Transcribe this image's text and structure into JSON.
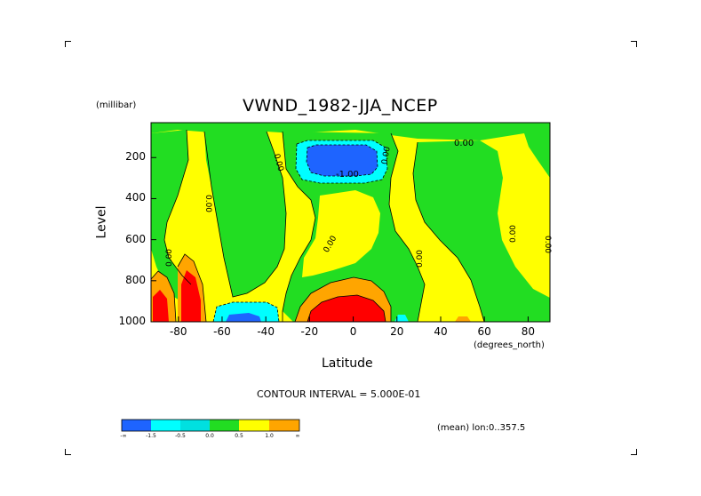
{
  "header": {
    "title": "VWND_1982-JJA_NCEP",
    "units_label": "(millibar)"
  },
  "footer": {
    "contour_interval": "CONTOUR INTERVAL = 5.000E-01",
    "mean_note": "(mean) lon:0..357.5"
  },
  "chart_data": {
    "type": "heatmap",
    "title": "VWND_1982-JJA_NCEP",
    "xlabel": "Latitude",
    "x_units": "(degrees_north)",
    "ylabel": "Level",
    "y_units": "(millibar)",
    "xlim": [
      -92.5,
      90
    ],
    "ylim": [
      1000,
      30
    ],
    "x_ticks": [
      "-80",
      "-60",
      "-40",
      "-20",
      "0",
      "20",
      "40",
      "60",
      "80"
    ],
    "x_tick_values": [
      -80,
      -60,
      -40,
      -20,
      0,
      20,
      40,
      60,
      80
    ],
    "y_ticks": [
      "200",
      "400",
      "600",
      "800",
      "1000"
    ],
    "y_tick_values": [
      200,
      400,
      600,
      800,
      1000
    ],
    "contour_labels": [
      "0.00",
      "0.00",
      "0.00",
      "0.00",
      "0.00",
      "0.00",
      "0.00",
      "0.00",
      "0.00",
      "-1.00"
    ],
    "colorbar": {
      "colors": [
        "#1e64ff",
        "#00ffff",
        "#00e0e0",
        "#22dd22",
        "#ffff00",
        "#ffa500",
        "#ff0000"
      ],
      "tick_labels": [
        "-∞",
        "-1.5",
        "-0.5",
        "0.0",
        "0.5",
        "1.0",
        "∞"
      ]
    }
  }
}
